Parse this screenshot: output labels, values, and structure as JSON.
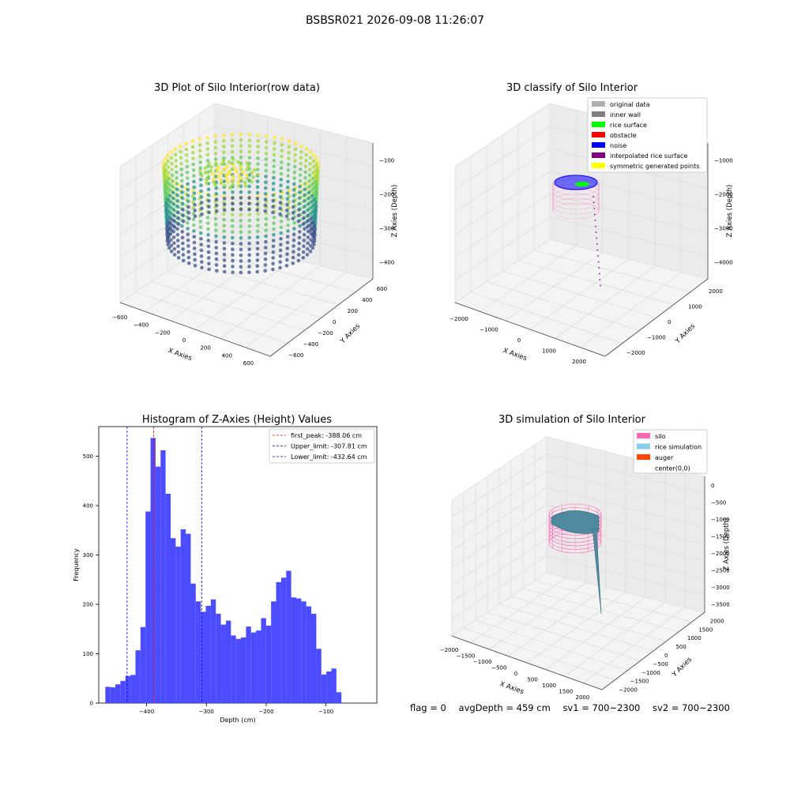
{
  "suptitle": "BSBSR021 2026-09-08 11:26:07",
  "footer": {
    "flag": "flag = 0",
    "avg_depth": "avgDepth = 459 cm",
    "sv1": "sv1 = 700~2300",
    "sv2": "sv2 = 700~2300"
  },
  "panel_titles": {
    "raw": "3D Plot of Silo Interior(row data)",
    "classify": "3D classify of Silo Interior",
    "histogram": "Histogram of Z-Axies (Height) Values",
    "simulation": "3D simulation of Silo Interior"
  },
  "chart_data": [
    {
      "type": "scatter",
      "title": "3D Plot of Silo Interior(row data)",
      "xlabel": "X Axies",
      "ylabel": "Y Axies",
      "zlabel": "Z Axies (Depth)",
      "x_ticks": [
        "−600",
        "−400",
        "−200",
        "0",
        "200",
        "400",
        "600"
      ],
      "y_ticks": [
        "−600",
        "−400",
        "−200",
        "0",
        "200",
        "400",
        "600"
      ],
      "z_ticks": [
        "−400",
        "−300",
        "−200",
        "−100"
      ],
      "colormap": "viridis"
    },
    {
      "type": "scatter",
      "title": "3D classify of Silo Interior",
      "xlabel": "X Axies",
      "ylabel": "Y Axies",
      "zlabel": "Z Axies (Depth)",
      "x_ticks": [
        "−2000",
        "−1000",
        "0",
        "1000",
        "2000"
      ],
      "y_ticks": [
        "−2000",
        "−1000",
        "0",
        "1000",
        "2000"
      ],
      "z_ticks": [
        "−4000",
        "−3000",
        "−2000",
        "−1000"
      ],
      "legend_position": "top-right",
      "legend": [
        {
          "label": "original data",
          "color": "#b0b0b0"
        },
        {
          "label": "inner wall",
          "color": "#808080"
        },
        {
          "label": "rice surface",
          "color": "#00ff00"
        },
        {
          "label": "obstacle",
          "color": "#ff0000"
        },
        {
          "label": "noise",
          "color": "#0000ff"
        },
        {
          "label": "interpolated rice surface",
          "color": "#800080"
        },
        {
          "label": "symmetric generated points",
          "color": "#ffff00"
        }
      ]
    },
    {
      "type": "bar",
      "title": "Histogram of Z-Axies (Height) Values",
      "xlabel": "Depth (cm)",
      "ylabel": "Frequency",
      "xlim": [
        -480,
        -15
      ],
      "ylim": [
        0,
        560
      ],
      "x_ticks": [
        -400,
        -300,
        -200,
        -100
      ],
      "x_tick_labels": [
        "−400",
        "−300",
        "−200",
        "−100"
      ],
      "y_ticks": [
        0,
        100,
        200,
        300,
        400,
        500
      ],
      "bar_color": "#4b4bff",
      "bin_start": -469,
      "bin_width": 8.4,
      "values": [
        33,
        32,
        38,
        45,
        55,
        57,
        107,
        154,
        388,
        537,
        479,
        512,
        424,
        334,
        317,
        352,
        343,
        242,
        206,
        185,
        197,
        210,
        181,
        159,
        167,
        137,
        130,
        133,
        155,
        143,
        147,
        172,
        157,
        206,
        245,
        254,
        268,
        214,
        212,
        206,
        196,
        181,
        110,
        58,
        64,
        70,
        22
      ],
      "lines": [
        {
          "label": "first_peak: -388.06 cm",
          "value": -388.06,
          "color": "#ff0000"
        },
        {
          "label": "Upper_limit: -307.81 cm",
          "value": -307.81,
          "color": "#0000ff"
        },
        {
          "label": "Lower_limit: -432.64 cm",
          "value": -432.64,
          "color": "#0000ff"
        }
      ],
      "legend_position": "top-right"
    },
    {
      "type": "area",
      "title": "3D simulation of Silo Interior",
      "xlabel": "X Axies",
      "ylabel": "Y Axies",
      "zlabel": "Z Axies (Depth)",
      "x_ticks": [
        "−2000",
        "−1500",
        "−1000",
        "−500",
        "0",
        "500",
        "1000",
        "1500",
        "2000"
      ],
      "y_ticks": [
        "−2000",
        "−1500",
        "−1000",
        "−500",
        "0",
        "500",
        "1000",
        "1500",
        "2000"
      ],
      "z_ticks": [
        "−3500",
        "−3000",
        "−2500",
        "−2000",
        "−1500",
        "−1000",
        "−500",
        "0"
      ],
      "legend_position": "top-right",
      "legend": [
        {
          "label": "silo",
          "color": "#ff69b4"
        },
        {
          "label": "rice simulation",
          "color": "#87ceeb"
        },
        {
          "label": "auger",
          "color": "#ff4500"
        },
        {
          "label": "center(0,0)",
          "color": ""
        }
      ]
    }
  ]
}
